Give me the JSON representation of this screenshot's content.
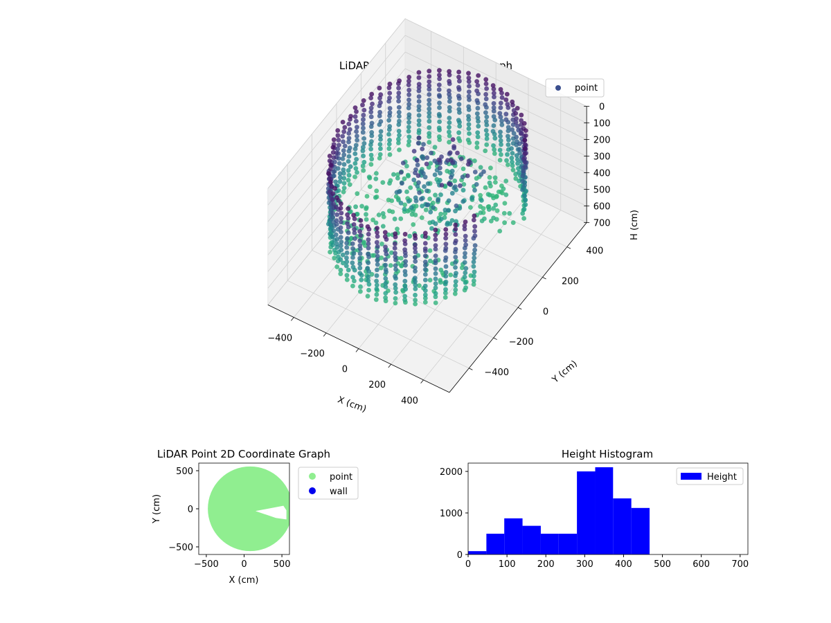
{
  "chart_data": [
    {
      "type": "scatter",
      "projection": "3d",
      "title": "LiDAR Point 3D Coordinate Graph",
      "xlabel": "X (cm)",
      "ylabel": "Y (cm)",
      "zlabel": "H (cm)",
      "xlim": [
        -560,
        560
      ],
      "ylim": [
        -560,
        560
      ],
      "zlim": [
        0,
        700
      ],
      "z_inverted": true,
      "x_ticks": [
        -400,
        -200,
        0,
        200,
        400
      ],
      "y_ticks": [
        -400,
        -200,
        0,
        200,
        400
      ],
      "z_ticks": [
        0,
        100,
        200,
        300,
        400,
        500,
        600,
        700
      ],
      "tick_labels": {
        "x": [
          "−400",
          "−200",
          "0",
          "200",
          "400"
        ],
        "y": [
          "−400",
          "−200",
          "0",
          "200",
          "400"
        ],
        "z": [
          "0",
          "100",
          "200",
          "300",
          "400",
          "500",
          "600",
          "700"
        ]
      },
      "colormap": "viridis",
      "legend": [
        {
          "name": "point",
          "color": "#3b4f8e"
        }
      ],
      "legend_position": "top-right",
      "grid": true,
      "description_of_points": {
        "wall_ring_radius_cm": 480,
        "wall_height_range_cm": [
          30,
          470
        ],
        "opening_angle_range_deg": [
          -20,
          25
        ],
        "inner_point_height_range_cm": [
          80,
          460
        ]
      }
    },
    {
      "type": "scatter",
      "title": "LiDAR Point 2D Coordinate Graph",
      "xlabel": "X (cm)",
      "ylabel": "Y (cm)",
      "xlim": [
        -600,
        600
      ],
      "ylim": [
        -600,
        600
      ],
      "x_ticks": [
        -500,
        0,
        500
      ],
      "y_ticks": [
        -500,
        0,
        500
      ],
      "tick_labels": {
        "x": [
          "−500",
          "0",
          "500"
        ],
        "y": [
          "−500",
          "0",
          "500"
        ]
      },
      "series": [
        {
          "name": "point",
          "color": "#90ee90",
          "region": {
            "center": [
              80,
              0
            ],
            "radius": 560
          }
        },
        {
          "name": "wall",
          "color": "#0000ee"
        }
      ],
      "legend_position": "outside-right"
    },
    {
      "type": "bar",
      "subtype": "histogram",
      "title": "Height Histogram",
      "xlim": [
        0,
        720
      ],
      "ylim": [
        0,
        2200
      ],
      "x_ticks": [
        0,
        100,
        200,
        300,
        400,
        500,
        600,
        700
      ],
      "y_ticks": [
        0,
        1000,
        2000
      ],
      "bin_edges": [
        0,
        47,
        93,
        140,
        187,
        233,
        280,
        327,
        373,
        420,
        467
      ],
      "values": [
        80,
        500,
        870,
        690,
        500,
        500,
        2000,
        2100,
        1350,
        1120
      ],
      "series": [
        {
          "name": "Height",
          "color": "#0000ff"
        }
      ],
      "legend_position": "top-right"
    }
  ]
}
